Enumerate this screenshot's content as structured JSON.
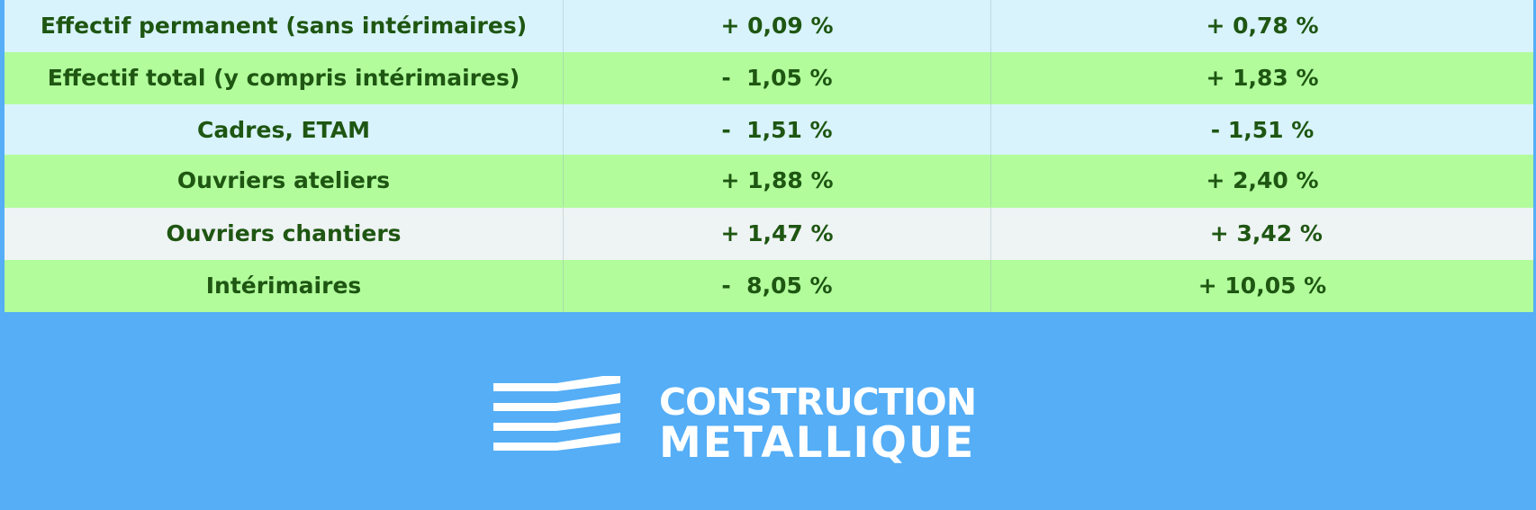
{
  "table": {
    "rows": [
      [
        "Effectif permanent (sans intérimaires)",
        "+ 0,09 %",
        "+ 0,78 %"
      ],
      [
        "Effectif total (y compris intérimaires)",
        "-  1,05 %",
        "+ 1,83 %"
      ],
      [
        "Cadres, ETAM",
        "-  1,51 %",
        "- 1,51 %"
      ],
      [
        "Ouvriers ateliers",
        "+ 1,88 %",
        "+ 2,40 %"
      ],
      [
        "Ouvriers chantiers",
        "+ 1,47 %",
        " + 3,42 %"
      ],
      [
        "Intérimaires",
        "-  8,05 %",
        "+ 10,05 %"
      ]
    ]
  },
  "logo": {
    "line1": "CONSTRUCTION",
    "line2": "METALLIQUE"
  }
}
